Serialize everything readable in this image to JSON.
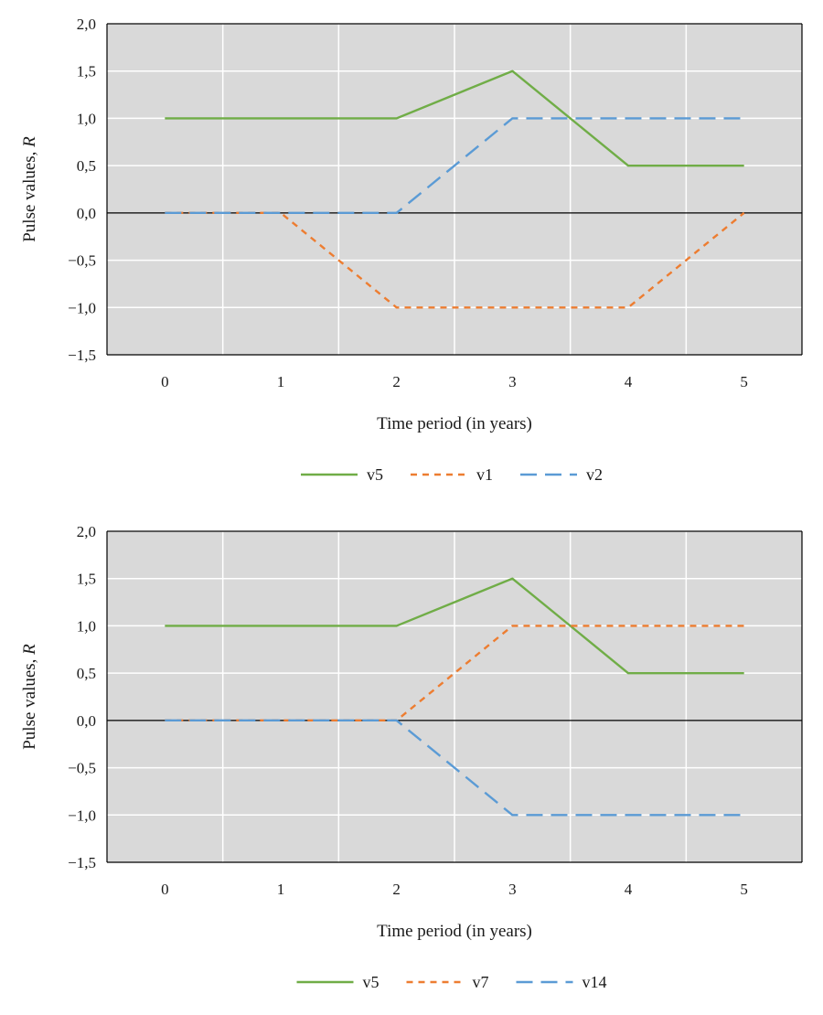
{
  "chart_data": [
    {
      "type": "line",
      "xlabel": "Time period (in years)",
      "ylabel_main": "Pulse values, ",
      "ylabel_italic": "R",
      "x": [
        0,
        1,
        2,
        3,
        4,
        5
      ],
      "xlim": [
        -0.5,
        5.5
      ],
      "ylim": [
        -1.5,
        2.0
      ],
      "y_ticks": [
        "2,0",
        "1,5",
        "1,0",
        "0,5",
        "0,0",
        "−0,5",
        "−1,0",
        "−1,5"
      ],
      "x_ticks": [
        "0",
        "1",
        "2",
        "3",
        "4",
        "5"
      ],
      "grid": true,
      "legend_position": "bottom",
      "background": "#d9d9d9",
      "series": [
        {
          "name": "v5",
          "values": [
            1.0,
            1.0,
            1.0,
            1.5,
            0.5,
            0.5
          ],
          "color": "#70ad47",
          "dash": "solid"
        },
        {
          "name": "v1",
          "values": [
            0.0,
            0.0,
            -1.0,
            -1.0,
            -1.0,
            0.0
          ],
          "color": "#ed7d31",
          "dash": "short"
        },
        {
          "name": "v2",
          "values": [
            0.0,
            0.0,
            0.0,
            1.0,
            1.0,
            1.0
          ],
          "color": "#5b9bd5",
          "dash": "long"
        }
      ]
    },
    {
      "type": "line",
      "xlabel": "Time period (in years)",
      "ylabel_main": "Pulse values, ",
      "ylabel_italic": "R",
      "x": [
        0,
        1,
        2,
        3,
        4,
        5
      ],
      "xlim": [
        -0.5,
        5.5
      ],
      "ylim": [
        -1.5,
        2.0
      ],
      "y_ticks": [
        "2,0",
        "1,5",
        "1,0",
        "0,5",
        "0,0",
        "−0,5",
        "−1,0",
        "−1,5"
      ],
      "x_ticks": [
        "0",
        "1",
        "2",
        "3",
        "4",
        "5"
      ],
      "grid": true,
      "legend_position": "bottom",
      "background": "#d9d9d9",
      "series": [
        {
          "name": "v5",
          "values": [
            1.0,
            1.0,
            1.0,
            1.5,
            0.5,
            0.5
          ],
          "color": "#70ad47",
          "dash": "solid"
        },
        {
          "name": "v7",
          "values": [
            0.0,
            0.0,
            0.0,
            1.0,
            1.0,
            1.0
          ],
          "color": "#ed7d31",
          "dash": "short"
        },
        {
          "name": "v14",
          "values": [
            0.0,
            0.0,
            0.0,
            -1.0,
            -1.0,
            -1.0
          ],
          "color": "#5b9bd5",
          "dash": "long"
        }
      ]
    }
  ]
}
